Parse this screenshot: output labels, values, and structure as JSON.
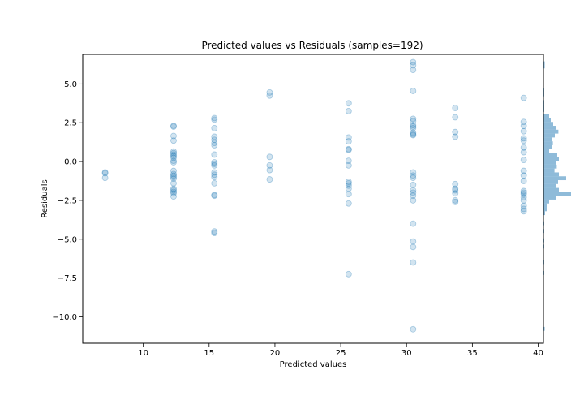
{
  "chart_data": {
    "type": "scatter",
    "title": "Predicted values vs Residuals (samples=192)",
    "xlabel": "Predicted values",
    "ylabel": "Residuals",
    "xlim": [
      5.4,
      40.4
    ],
    "ylim": [
      -11.7,
      6.9
    ],
    "xticks": [
      10,
      15,
      20,
      25,
      30,
      35,
      40
    ],
    "yticks": [
      5.0,
      2.5,
      0.0,
      -2.5,
      -5.0,
      -7.5,
      -10.0
    ],
    "ytick_labels": [
      "5.0",
      "2.5",
      "0.0",
      "−2.5",
      "−5.0",
      "−7.5",
      "−10.0"
    ],
    "xtick_labels": [
      "10",
      "15",
      "20",
      "25",
      "30",
      "35",
      "40"
    ],
    "point_color": "#1f77b4",
    "point_alpha": 0.2,
    "hist_color": "#1f77b4",
    "hist_alpha": 0.5,
    "points": [
      [
        7.1,
        -0.7
      ],
      [
        7.1,
        -0.75
      ],
      [
        7.1,
        -1.05
      ],
      [
        12.3,
        2.3
      ],
      [
        12.3,
        2.25
      ],
      [
        12.3,
        1.65
      ],
      [
        12.3,
        1.35
      ],
      [
        12.3,
        0.65
      ],
      [
        12.3,
        0.55
      ],
      [
        12.3,
        0.45
      ],
      [
        12.3,
        0.35
      ],
      [
        12.3,
        0.25
      ],
      [
        12.3,
        0.05
      ],
      [
        12.3,
        -0.05
      ],
      [
        12.3,
        -0.6
      ],
      [
        12.3,
        -0.8
      ],
      [
        12.3,
        -0.9
      ],
      [
        12.3,
        -1.0
      ],
      [
        12.3,
        -1.1
      ],
      [
        12.3,
        -1.4
      ],
      [
        12.3,
        -1.75
      ],
      [
        12.3,
        -1.85
      ],
      [
        12.3,
        -1.95
      ],
      [
        12.3,
        -2.05
      ],
      [
        12.3,
        -2.25
      ],
      [
        15.4,
        2.8
      ],
      [
        15.4,
        2.7
      ],
      [
        15.4,
        2.15
      ],
      [
        15.4,
        1.6
      ],
      [
        15.4,
        1.4
      ],
      [
        15.4,
        1.2
      ],
      [
        15.4,
        1.05
      ],
      [
        15.4,
        0.45
      ],
      [
        15.4,
        -0.05
      ],
      [
        15.4,
        -0.15
      ],
      [
        15.4,
        -0.25
      ],
      [
        15.4,
        -0.7
      ],
      [
        15.4,
        -0.85
      ],
      [
        15.4,
        -1.0
      ],
      [
        15.4,
        -1.4
      ],
      [
        15.4,
        -2.15
      ],
      [
        15.4,
        -2.2
      ],
      [
        15.4,
        -4.5
      ],
      [
        15.4,
        -4.6
      ],
      [
        19.6,
        4.45
      ],
      [
        19.6,
        4.25
      ],
      [
        19.6,
        0.3
      ],
      [
        19.6,
        -0.25
      ],
      [
        19.6,
        -0.55
      ],
      [
        19.6,
        -1.15
      ],
      [
        25.6,
        3.75
      ],
      [
        25.6,
        3.25
      ],
      [
        25.6,
        1.55
      ],
      [
        25.6,
        1.3
      ],
      [
        25.6,
        0.8
      ],
      [
        25.6,
        0.75
      ],
      [
        25.6,
        0.05
      ],
      [
        25.6,
        -0.25
      ],
      [
        25.6,
        -1.3
      ],
      [
        25.6,
        -1.4
      ],
      [
        25.6,
        -1.55
      ],
      [
        25.6,
        -1.75
      ],
      [
        25.6,
        -2.1
      ],
      [
        25.6,
        -2.7
      ],
      [
        25.6,
        -7.25
      ],
      [
        30.5,
        6.4
      ],
      [
        30.5,
        6.2
      ],
      [
        30.5,
        5.9
      ],
      [
        30.5,
        4.55
      ],
      [
        30.5,
        2.75
      ],
      [
        30.5,
        2.6
      ],
      [
        30.5,
        2.35
      ],
      [
        30.5,
        2.25
      ],
      [
        30.5,
        2.15
      ],
      [
        30.5,
        1.85
      ],
      [
        30.5,
        1.75
      ],
      [
        30.5,
        1.7
      ],
      [
        30.5,
        -0.7
      ],
      [
        30.5,
        -0.9
      ],
      [
        30.5,
        -1.05
      ],
      [
        30.5,
        -1.5
      ],
      [
        30.5,
        -1.85
      ],
      [
        30.5,
        -2.0
      ],
      [
        30.5,
        -2.2
      ],
      [
        30.5,
        -2.5
      ],
      [
        30.5,
        -4.0
      ],
      [
        30.5,
        -5.15
      ],
      [
        30.5,
        -5.5
      ],
      [
        30.5,
        -6.5
      ],
      [
        30.5,
        -10.8
      ],
      [
        33.7,
        3.45
      ],
      [
        33.7,
        2.85
      ],
      [
        33.7,
        1.9
      ],
      [
        33.7,
        1.6
      ],
      [
        33.7,
        -1.45
      ],
      [
        33.7,
        -1.75
      ],
      [
        33.7,
        -1.85
      ],
      [
        33.7,
        -2.05
      ],
      [
        33.7,
        -2.5
      ],
      [
        33.7,
        -2.6
      ],
      [
        38.9,
        4.1
      ],
      [
        38.9,
        2.55
      ],
      [
        38.9,
        2.3
      ],
      [
        38.9,
        1.95
      ],
      [
        38.9,
        1.5
      ],
      [
        38.9,
        1.35
      ],
      [
        38.9,
        0.9
      ],
      [
        38.9,
        0.6
      ],
      [
        38.9,
        0.1
      ],
      [
        38.9,
        -0.6
      ],
      [
        38.9,
        -0.9
      ],
      [
        38.9,
        -1.25
      ],
      [
        38.9,
        -1.9
      ],
      [
        38.9,
        -2.0
      ],
      [
        38.9,
        -2.1
      ],
      [
        38.9,
        -2.3
      ],
      [
        38.9,
        -2.5
      ],
      [
        38.9,
        -2.85
      ],
      [
        38.9,
        -3.05
      ],
      [
        38.9,
        -3.2
      ]
    ],
    "hist_bins": [
      [
        6.2,
        6.45,
        0.08
      ],
      [
        6.0,
        6.2,
        0.08
      ],
      [
        4.45,
        4.7,
        0.05
      ],
      [
        4.2,
        4.45,
        0.05
      ],
      [
        3.7,
        3.95,
        0.05
      ],
      [
        3.45,
        3.7,
        0.05
      ],
      [
        3.2,
        3.45,
        0.05
      ],
      [
        2.8,
        3.05,
        0.35
      ],
      [
        2.55,
        2.8,
        0.45
      ],
      [
        2.3,
        2.55,
        0.6
      ],
      [
        2.05,
        2.3,
        0.75
      ],
      [
        1.8,
        2.05,
        0.92
      ],
      [
        1.55,
        1.8,
        0.7
      ],
      [
        1.3,
        1.55,
        0.55
      ],
      [
        1.05,
        1.3,
        0.58
      ],
      [
        0.8,
        1.05,
        0.55
      ],
      [
        0.55,
        0.8,
        0.35
      ],
      [
        0.3,
        0.55,
        0.85
      ],
      [
        0.05,
        0.3,
        0.95
      ],
      [
        -0.2,
        0.05,
        0.8
      ],
      [
        -0.45,
        -0.2,
        0.82
      ],
      [
        -0.7,
        -0.45,
        0.68
      ],
      [
        -0.95,
        -0.7,
        0.95
      ],
      [
        -1.2,
        -0.95,
        1.4
      ],
      [
        -1.45,
        -1.2,
        0.9
      ],
      [
        -1.7,
        -1.45,
        0.75
      ],
      [
        -1.95,
        -1.7,
        0.95
      ],
      [
        -2.2,
        -1.95,
        1.7
      ],
      [
        -2.45,
        -2.2,
        0.78
      ],
      [
        -2.7,
        -2.45,
        0.35
      ],
      [
        -2.95,
        -2.7,
        0.2
      ],
      [
        -3.2,
        -2.95,
        0.2
      ],
      [
        -3.45,
        -3.2,
        0.1
      ],
      [
        -4.1,
        -3.85,
        0.05
      ],
      [
        -4.6,
        -4.35,
        0.05
      ],
      [
        -5.2,
        -4.95,
        0.05
      ],
      [
        -5.6,
        -5.35,
        0.05
      ],
      [
        -6.6,
        -6.35,
        0.05
      ],
      [
        -7.3,
        -7.05,
        0.05
      ],
      [
        -10.9,
        -10.65,
        0.08
      ]
    ]
  }
}
